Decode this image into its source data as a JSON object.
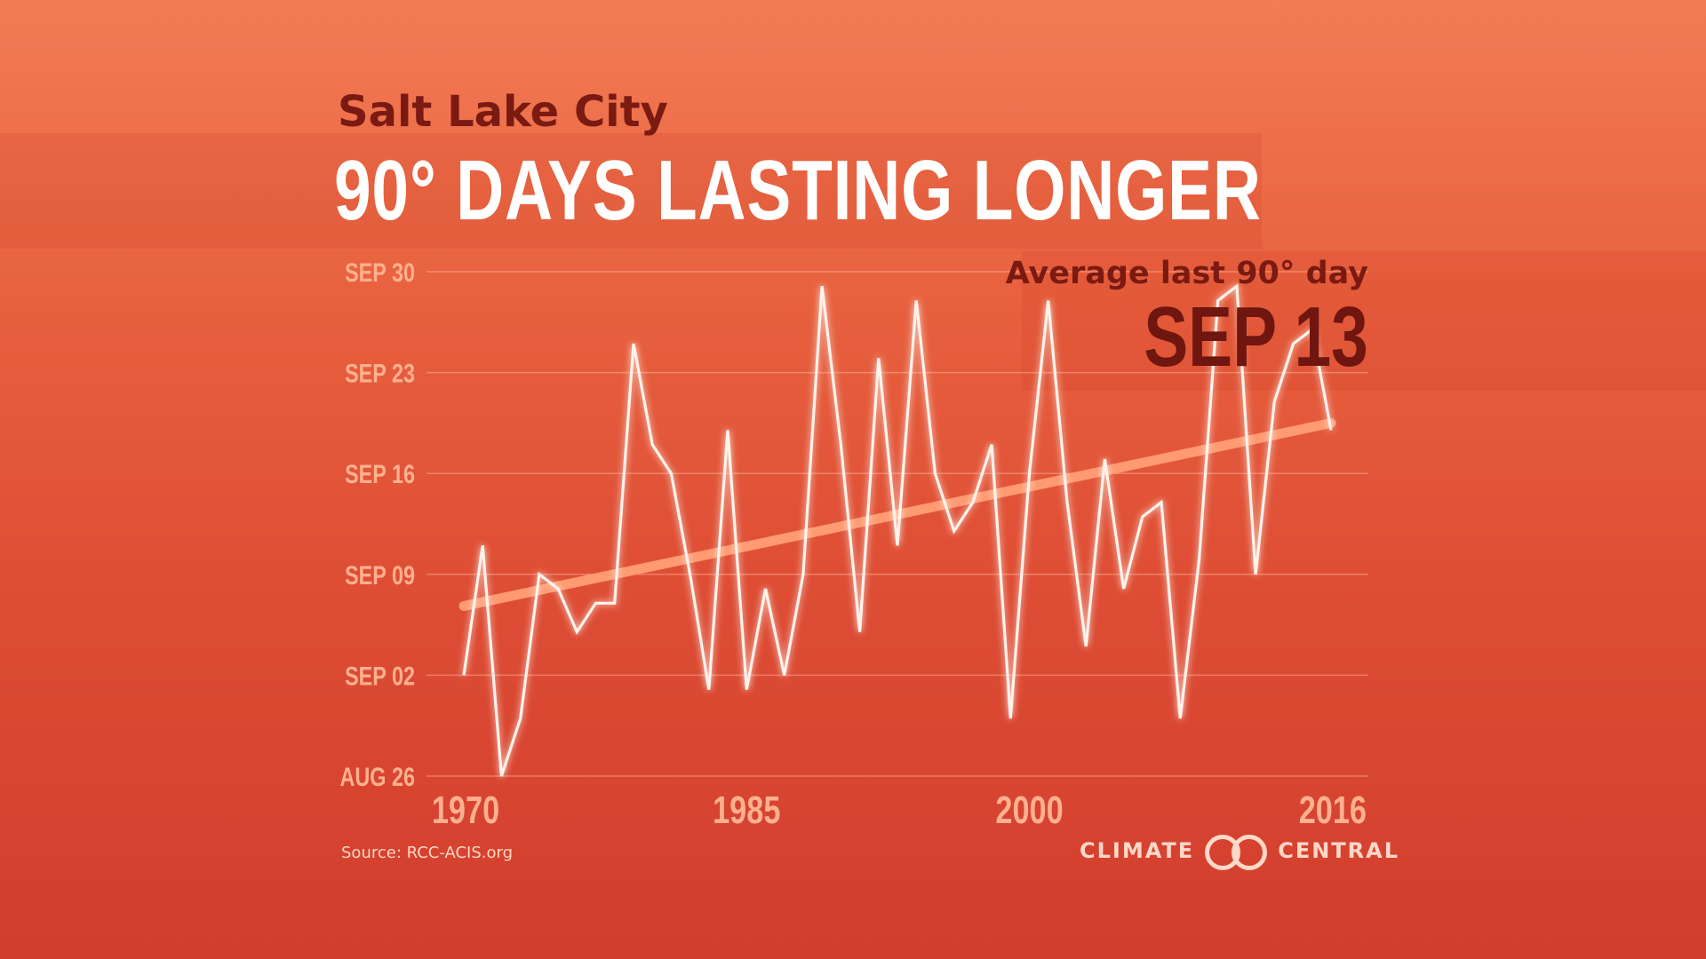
{
  "header": {
    "city": "Salt Lake City",
    "title": "90° DAYS LASTING LONGER"
  },
  "callout": {
    "label": "Average last 90° day",
    "value": "SEP 13"
  },
  "source": "Source: RCC-ACIS.org",
  "logo": {
    "left_text": "CLIMATE",
    "right_text": "CENTRAL",
    "icon": "climate-central-rings-icon"
  },
  "colors": {
    "background_top": "#f27c55",
    "background_bottom": "#d23d2d",
    "series_line": "#fff2ea",
    "trend_line": "#ff9a72",
    "tick_labels": "#ffb08f",
    "title_dark": "#7a1a12"
  },
  "chart_data": {
    "type": "line",
    "title": "90° DAYS LASTING LONGER",
    "subtitle": "Salt Lake City",
    "xlabel": "",
    "ylabel": "",
    "x_ticks": [
      "1970",
      "1985",
      "2000",
      "2016"
    ],
    "x_tick_values": [
      1970,
      1985,
      2000,
      2016
    ],
    "y_ticks": [
      "SEP 30",
      "SEP 23",
      "SEP 16",
      "SEP 09",
      "SEP 02",
      "AUG 26"
    ],
    "y_tick_values": [
      30,
      23,
      16,
      9,
      2,
      -5
    ],
    "y_unit": "day of September (AUG 26 = -5)",
    "xlim": [
      1970,
      2016
    ],
    "ylim": [
      -5,
      30
    ],
    "grid": true,
    "series": [
      {
        "x": [
          1970,
          1971,
          1972,
          1973,
          1974,
          1975,
          1976,
          1977,
          1978,
          1979,
          1980,
          1981,
          1982,
          1983,
          1984,
          1985,
          1986,
          1987,
          1988,
          1989,
          1990,
          1991,
          1992,
          1993,
          1994,
          1995,
          1996,
          1997,
          1998,
          1999,
          2000,
          2001,
          2002,
          2003,
          2004,
          2005,
          2006,
          2007,
          2008,
          2009,
          2010,
          2011,
          2012,
          2013,
          2014,
          2015,
          2016
        ],
        "values": [
          2,
          11,
          -5,
          -1,
          9,
          8,
          5,
          7,
          7,
          25,
          18,
          16,
          9,
          1,
          19,
          1,
          8,
          2,
          9,
          29,
          18,
          5,
          24,
          11,
          28,
          16,
          12,
          14,
          18,
          -1,
          16,
          28,
          14,
          4,
          17,
          8,
          13,
          14,
          -1,
          10,
          28,
          29,
          9,
          21,
          25,
          26,
          19
        ]
      }
    ],
    "trend": {
      "x": [
        1970,
        2016
      ],
      "values": [
        6.8,
        19.5
      ]
    }
  }
}
